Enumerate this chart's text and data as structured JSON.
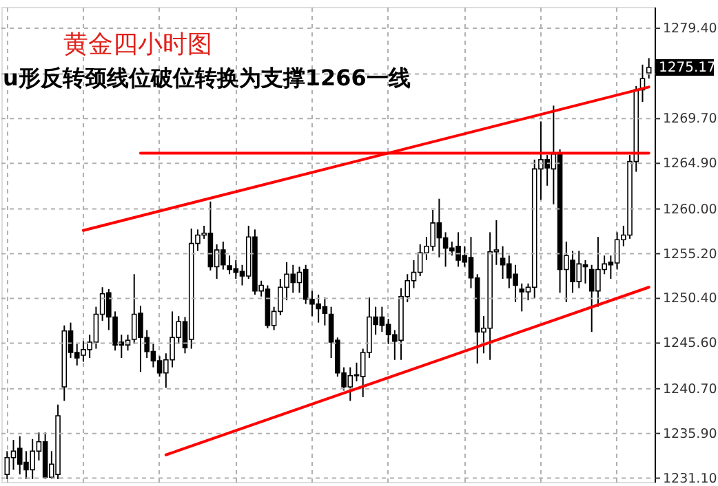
{
  "chart_data": {
    "type": "candlestick",
    "title": "黄金四小时图",
    "annotations": [
      "u形反转颈线位破位转换为支撑1266一线",
      "1275.17"
    ],
    "categories": [
      null,
      null,
      null,
      null,
      null,
      null,
      null,
      null,
      null,
      null,
      null,
      null,
      null,
      null,
      null,
      null,
      null,
      null,
      null,
      null,
      null,
      null,
      null,
      null,
      null,
      null,
      null,
      null,
      null,
      null,
      null,
      null,
      null,
      null,
      null,
      null,
      null,
      null,
      null,
      null,
      null,
      null,
      null,
      null,
      null,
      null,
      null,
      null,
      null,
      null,
      null,
      null,
      null,
      null,
      null,
      null,
      null,
      null,
      null,
      null,
      null,
      null,
      null,
      null,
      null,
      null,
      null,
      null,
      null,
      null,
      null,
      null,
      null,
      null,
      null,
      null,
      null,
      null,
      null,
      null,
      null,
      null,
      null,
      null,
      null,
      null,
      null,
      null,
      null,
      null,
      null,
      null,
      null,
      null,
      null,
      null,
      null,
      null,
      null,
      null,
      null,
      null
    ],
    "ohlc": [
      [
        1231.5,
        1234.0,
        1231.0,
        1233.3
      ],
      [
        1233.3,
        1235.2,
        1232.0,
        1234.0
      ],
      [
        1234.3,
        1235.6,
        1231.5,
        1232.6
      ],
      [
        1232.8,
        1234.0,
        1231.0,
        1232.0
      ],
      [
        1232.0,
        1235.3,
        1231.0,
        1234.0
      ],
      [
        1234.0,
        1236.0,
        1233.0,
        1235.0
      ],
      [
        1235.0,
        1236.0,
        1231.0,
        1231.2
      ],
      [
        1231.2,
        1234.0,
        1231.0,
        1232.6
      ],
      [
        1231.5,
        1239.0,
        1231.0,
        1237.8
      ],
      [
        1240.9,
        1247.5,
        1239.4,
        1246.9
      ],
      [
        1246.9,
        1247.8,
        1244.0,
        1244.6
      ],
      [
        1244.6,
        1245.5,
        1243.2,
        1244.0
      ],
      [
        1244.3,
        1245.8,
        1243.6,
        1244.9
      ],
      [
        1244.9,
        1246.5,
        1244.0,
        1245.7
      ],
      [
        1245.7,
        1249.5,
        1245.0,
        1248.7
      ],
      [
        1248.7,
        1251.6,
        1248.0,
        1250.9
      ],
      [
        1251.0,
        1251.4,
        1247.0,
        1248.4
      ],
      [
        1248.4,
        1249.0,
        1244.8,
        1245.4
      ],
      [
        1245.7,
        1246.5,
        1244.0,
        1245.4
      ],
      [
        1245.4,
        1246.5,
        1244.8,
        1245.9
      ],
      [
        1246.0,
        1253.0,
        1245.5,
        1248.7
      ],
      [
        1248.8,
        1249.6,
        1242.5,
        1246.2
      ],
      [
        1246.2,
        1247.0,
        1244.0,
        1244.7
      ],
      [
        1244.7,
        1245.5,
        1243.0,
        1243.7
      ],
      [
        1243.7,
        1244.2,
        1242.0,
        1242.4
      ],
      [
        1242.4,
        1244.5,
        1240.8,
        1243.8
      ],
      [
        1243.8,
        1249.0,
        1243.0,
        1246.2
      ],
      [
        1246.2,
        1248.5,
        1245.5,
        1247.9
      ],
      [
        1247.9,
        1248.4,
        1244.5,
        1245.1
      ],
      [
        1246.0,
        1257.9,
        1245.0,
        1256.3
      ],
      [
        1256.3,
        1257.8,
        1255.5,
        1257.2
      ],
      [
        1257.2,
        1258.2,
        1256.8,
        1257.4
      ],
      [
        1257.4,
        1260.8,
        1253.4,
        1253.8
      ],
      [
        1253.8,
        1256.2,
        1252.5,
        1255.6
      ],
      [
        1255.6,
        1256.5,
        1253.5,
        1254.0
      ],
      [
        1253.9,
        1255.0,
        1253.0,
        1253.5
      ],
      [
        1253.6,
        1254.5,
        1252.5,
        1253.2
      ],
      [
        1253.3,
        1254.0,
        1251.8,
        1252.8
      ],
      [
        1252.8,
        1258.2,
        1252.5,
        1257.0
      ],
      [
        1257.0,
        1257.8,
        1250.8,
        1251.2
      ],
      [
        1251.2,
        1252.3,
        1250.6,
        1251.8
      ],
      [
        1251.4,
        1251.8,
        1247.2,
        1247.5
      ],
      [
        1247.5,
        1249.5,
        1247.0,
        1249.0
      ],
      [
        1249.0,
        1252.5,
        1248.6,
        1251.6
      ],
      [
        1251.6,
        1254.3,
        1250.2,
        1253.0
      ],
      [
        1253.0,
        1254.0,
        1251.0,
        1252.1
      ],
      [
        1252.1,
        1253.8,
        1251.0,
        1253.2
      ],
      [
        1253.5,
        1254.0,
        1249.8,
        1250.3
      ],
      [
        1250.3,
        1251.2,
        1248.5,
        1249.8
      ],
      [
        1249.8,
        1250.8,
        1247.8,
        1249.3
      ],
      [
        1249.5,
        1250.5,
        1247.5,
        1248.8
      ],
      [
        1248.7,
        1249.5,
        1244.0,
        1245.7
      ],
      [
        1245.9,
        1246.2,
        1242.0,
        1242.4
      ],
      [
        1242.4,
        1243.0,
        1240.5,
        1240.9
      ],
      [
        1240.9,
        1243.0,
        1239.4,
        1242.1
      ],
      [
        1242.1,
        1243.5,
        1241.5,
        1242.2
      ],
      [
        1242.0,
        1245.0,
        1239.8,
        1244.6
      ],
      [
        1244.6,
        1250.5,
        1244.0,
        1248.4
      ],
      [
        1248.4,
        1249.5,
        1246.5,
        1247.6
      ],
      [
        1248.4,
        1249.5,
        1246.8,
        1247.5
      ],
      [
        1247.6,
        1248.2,
        1245.5,
        1246.5
      ],
      [
        1246.5,
        1247.0,
        1243.8,
        1245.8
      ],
      [
        1245.9,
        1251.5,
        1243.8,
        1250.6
      ],
      [
        1250.6,
        1253.0,
        1250.0,
        1252.3
      ],
      [
        1252.3,
        1254.5,
        1251.5,
        1253.2
      ],
      [
        1253.2,
        1256.2,
        1252.8,
        1255.3
      ],
      [
        1255.3,
        1257.0,
        1254.5,
        1256.0
      ],
      [
        1256.0,
        1259.9,
        1255.5,
        1258.5
      ],
      [
        1258.5,
        1261.1,
        1254.8,
        1256.9
      ],
      [
        1256.9,
        1257.5,
        1253.8,
        1255.8
      ],
      [
        1255.8,
        1256.5,
        1255.0,
        1255.5
      ],
      [
        1256.0,
        1257.5,
        1253.8,
        1254.5
      ],
      [
        1255.0,
        1256.0,
        1253.8,
        1254.3
      ],
      [
        1254.8,
        1257.0,
        1251.5,
        1252.6
      ],
      [
        1252.6,
        1253.0,
        1243.4,
        1246.8
      ],
      [
        1246.8,
        1248.5,
        1244.5,
        1247.2
      ],
      [
        1247.2,
        1257.5,
        1243.8,
        1255.4
      ],
      [
        1255.4,
        1258.8,
        1254.0,
        1255.6
      ],
      [
        1254.7,
        1256.0,
        1252.5,
        1254.0
      ],
      [
        1254.1,
        1255.0,
        1251.5,
        1252.6
      ],
      [
        1253.0,
        1254.0,
        1250.0,
        1251.8
      ],
      [
        1251.4,
        1252.0,
        1249.0,
        1251.1
      ],
      [
        1251.1,
        1252.0,
        1250.2,
        1251.6
      ],
      [
        1251.6,
        1265.3,
        1250.4,
        1264.3
      ],
      [
        1264.3,
        1269.4,
        1261.0,
        1265.3
      ],
      [
        1265.3,
        1265.8,
        1262.5,
        1264.4
      ],
      [
        1264.3,
        1271.1,
        1260.5,
        1265.9
      ],
      [
        1265.9,
        1266.4,
        1251.0,
        1253.5
      ],
      [
        1253.5,
        1256.5,
        1250.0,
        1255.0
      ],
      [
        1254.5,
        1255.5,
        1251.0,
        1252.2
      ],
      [
        1252.2,
        1255.5,
        1251.5,
        1254.1
      ],
      [
        1254.0,
        1254.5,
        1252.0,
        1253.8
      ],
      [
        1253.5,
        1254.0,
        1246.8,
        1251.2
      ],
      [
        1251.2,
        1257.0,
        1249.5,
        1253.5
      ],
      [
        1253.5,
        1255.0,
        1253.0,
        1254.1
      ],
      [
        1254.3,
        1255.0,
        1252.5,
        1254.0
      ],
      [
        1254.2,
        1257.5,
        1253.5,
        1256.7
      ],
      [
        1256.7,
        1258.2,
        1256.0,
        1257.2
      ],
      [
        1257.2,
        1265.8,
        1256.8,
        1265.1
      ],
      [
        1265.1,
        1273.2,
        1264.0,
        1272.8
      ],
      [
        1272.8,
        1275.5,
        1271.5,
        1274.0
      ],
      [
        1274.6,
        1276.2,
        1274.0,
        1275.2
      ]
    ],
    "series": [
      {
        "type": "line",
        "color": "#ff0000",
        "values": [
          null,
          null,
          null,
          null,
          null,
          null,
          null,
          null,
          null,
          null,
          null,
          null,
          1257.7,
          null,
          null,
          null,
          null,
          null,
          null,
          null,
          null,
          null,
          null,
          null,
          null,
          null,
          null,
          null,
          null,
          null,
          null,
          null,
          null,
          null,
          null,
          null,
          null,
          null,
          null,
          null,
          null,
          null,
          null,
          null,
          null,
          null,
          null,
          null,
          null,
          null,
          null,
          null,
          null,
          null,
          null,
          null,
          null,
          null,
          null,
          null,
          null,
          null,
          null,
          null,
          null,
          null,
          null,
          null,
          null,
          null,
          null,
          null,
          null,
          null,
          null,
          null,
          null,
          null,
          null,
          null,
          null,
          null,
          null,
          null,
          null,
          null,
          null,
          null,
          null,
          null,
          null,
          null,
          null,
          null,
          null,
          null,
          null,
          null,
          null,
          null,
          null,
          1273.1
        ]
      },
      {
        "type": "line",
        "color": "#ff0000",
        "values": [
          null,
          null,
          null,
          null,
          null,
          null,
          null,
          null,
          null,
          null,
          null,
          null,
          null,
          null,
          null,
          null,
          null,
          null,
          null,
          null,
          null,
          null,
          null,
          null,
          null,
          1233.6,
          null,
          null,
          null,
          null,
          null,
          null,
          null,
          null,
          null,
          null,
          null,
          null,
          null,
          null,
          null,
          null,
          null,
          null,
          null,
          null,
          null,
          null,
          null,
          null,
          null,
          null,
          null,
          null,
          null,
          null,
          null,
          null,
          null,
          null,
          null,
          null,
          null,
          null,
          null,
          null,
          null,
          null,
          null,
          null,
          null,
          null,
          null,
          null,
          null,
          null,
          null,
          null,
          null,
          null,
          null,
          null,
          null,
          null,
          null,
          null,
          null,
          null,
          null,
          null,
          null,
          null,
          null,
          null,
          null,
          null,
          null,
          null,
          null,
          null,
          null,
          1251.6
        ]
      },
      {
        "type": "line",
        "color": "#ff0000",
        "values": [
          null,
          null,
          null,
          null,
          null,
          null,
          null,
          null,
          null,
          null,
          null,
          null,
          null,
          null,
          null,
          null,
          null,
          null,
          null,
          null,
          null,
          1266,
          null,
          null,
          null,
          null,
          null,
          null,
          null,
          null,
          null,
          null,
          null,
          null,
          null,
          null,
          null,
          null,
          null,
          null,
          null,
          null,
          null,
          null,
          null,
          null,
          null,
          null,
          null,
          null,
          null,
          null,
          null,
          null,
          null,
          null,
          null,
          null,
          null,
          null,
          null,
          null,
          null,
          null,
          null,
          null,
          null,
          null,
          null,
          null,
          null,
          null,
          null,
          null,
          null,
          null,
          null,
          null,
          null,
          null,
          null,
          null,
          null,
          null,
          null,
          null,
          null,
          null,
          null,
          null,
          null,
          null,
          null,
          null,
          null,
          null,
          null,
          null,
          null,
          null,
          null,
          1266
        ]
      }
    ],
    "ylim": [
      1230.7,
      1281.7
    ],
    "yticks": [
      {
        "value": 1231.1,
        "label": "1231.10"
      },
      {
        "value": 1235.9,
        "label": "1235.90"
      },
      {
        "value": 1240.7,
        "label": "1240.70"
      },
      {
        "value": 1245.6,
        "label": "1245.60"
      },
      {
        "value": 1250.4,
        "label": "1250.40"
      },
      {
        "value": 1255.2,
        "label": "1255.20"
      },
      {
        "value": 1260.0,
        "label": "1260.00"
      },
      {
        "value": 1264.9,
        "label": "1264.90"
      },
      {
        "value": 1269.7,
        "label": "1269.70"
      },
      {
        "value": 1274.5,
        "label": null
      },
      {
        "value": 1279.4,
        "label": "1279.40"
      }
    ],
    "grid": true,
    "tick_labels": "y"
  }
}
